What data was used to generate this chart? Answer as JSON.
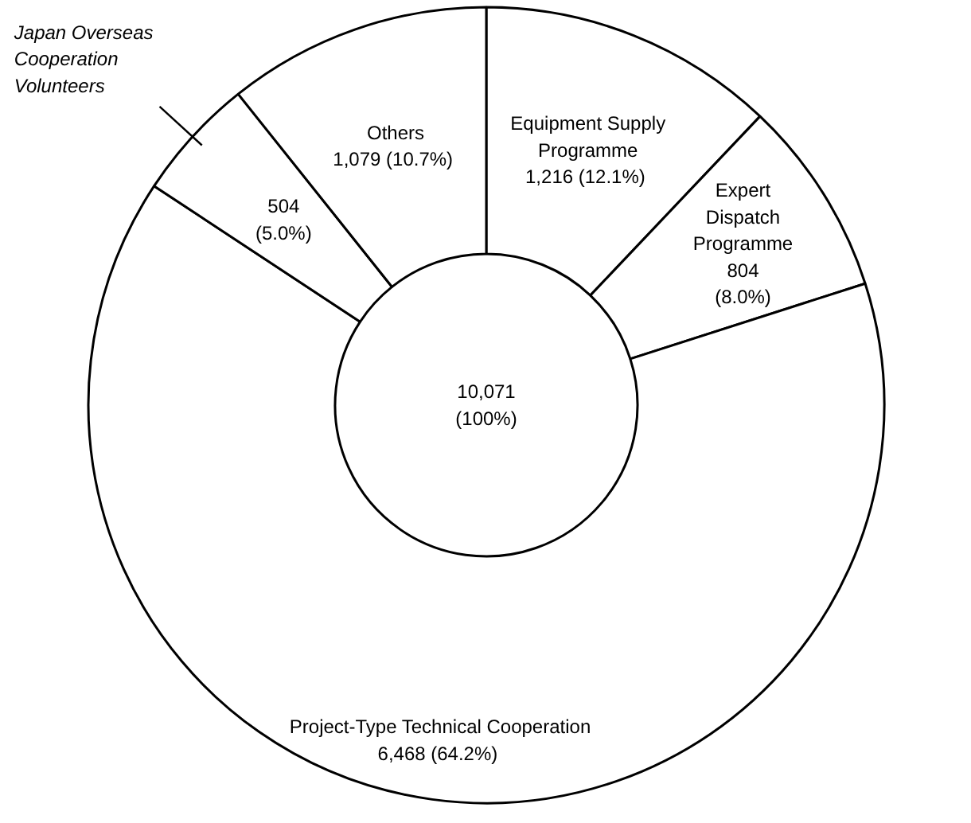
{
  "chart_data": {
    "type": "donut",
    "categories": [
      "Equipment Supply Programme",
      "Expert Dispatch Programme",
      "Project-Type Technical Cooperation",
      "Japan Overseas Cooperation Volunteers",
      "Others"
    ],
    "values": [
      1216,
      804,
      6468,
      504,
      1079
    ],
    "value_labels": [
      "1,216  (12.1%)",
      "804\n(8.0%)",
      "6,468  (64.2%)",
      "504\n(5.0%)",
      "1,079  (10.7%)"
    ],
    "colors": [
      "#ffffff",
      "#ffffff",
      "#ffffff",
      "#ffffff",
      "#ffffff"
    ],
    "annotations": [
      "10,071\n(100%)"
    ]
  }
}
